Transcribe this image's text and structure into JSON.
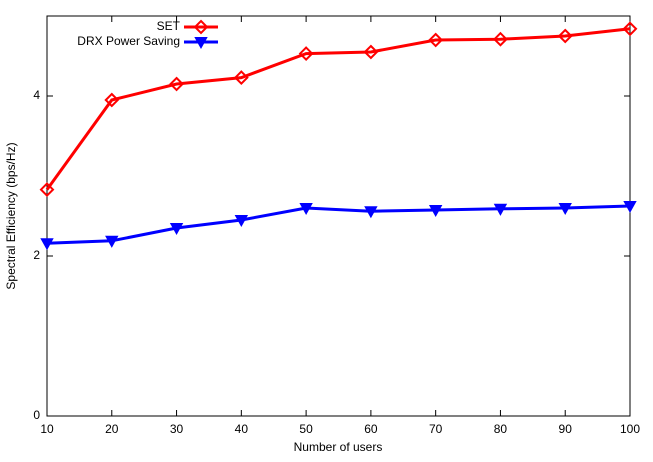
{
  "chart_data": {
    "type": "line",
    "x_label": "Number of users",
    "y_label": "Spectral Efficiency (bps/Hz)",
    "x": [
      10,
      20,
      30,
      40,
      50,
      60,
      70,
      80,
      90,
      100
    ],
    "series": [
      {
        "name": "SET",
        "color": "#ff0000",
        "marker": "diamond",
        "values": [
          2.83,
          3.95,
          4.15,
          4.23,
          4.53,
          4.55,
          4.7,
          4.71,
          4.75,
          4.84
        ]
      },
      {
        "name": "DRX Power Saving",
        "color": "#0000ff",
        "marker": "triangle-down",
        "values": [
          2.16,
          2.19,
          2.35,
          2.45,
          2.6,
          2.56,
          2.575,
          2.59,
          2.6,
          2.625
        ]
      }
    ],
    "xlim": [
      10,
      100
    ],
    "xticks": [
      10,
      20,
      30,
      40,
      50,
      60,
      70,
      80,
      90,
      100
    ],
    "ylim": [
      0,
      5
    ],
    "yticks": [
      0,
      2,
      4
    ],
    "legend": "upper left",
    "grid": false
  }
}
